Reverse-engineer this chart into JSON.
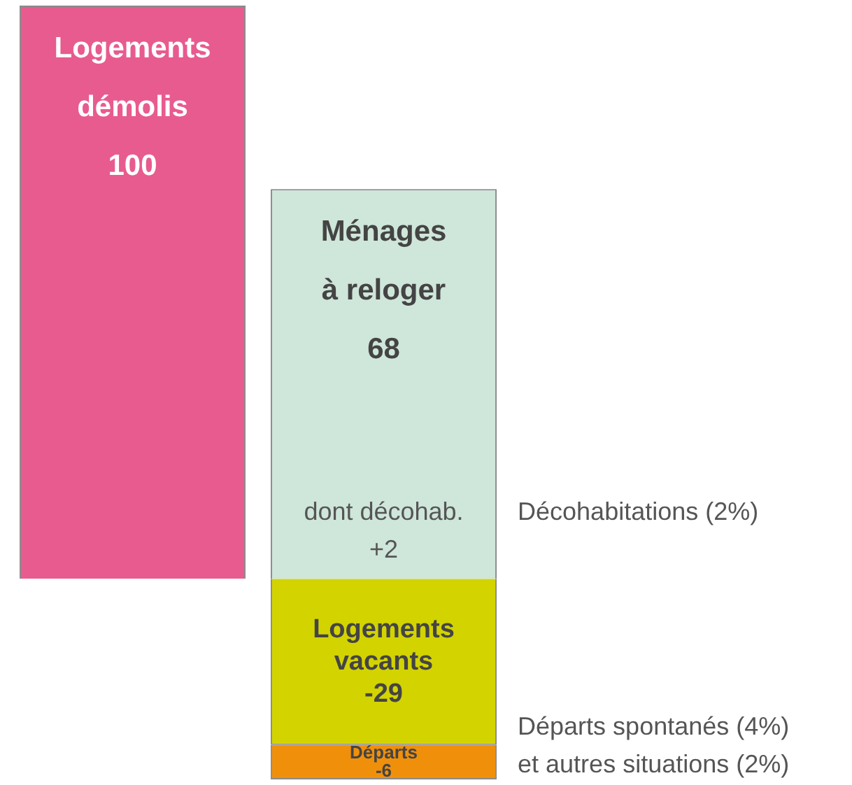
{
  "chart_data": {
    "type": "bar",
    "stacked": true,
    "categories": [
      null,
      null
    ],
    "data_labels": true,
    "series": [
      {
        "name": "Logements\ndémolis",
        "color": "#e85b8f",
        "values": [
          100,
          null
        ]
      },
      {
        "name": "Ménages\nà reloger",
        "color": "#cfe6da",
        "values": [
          null,
          68
        ]
      },
      {
        "name": "Logements\nvacants",
        "color": "#d3d300",
        "values": [
          null,
          -29
        ]
      },
      {
        "name": "Départs",
        "color": "#f0900a",
        "values": [
          null,
          -6
        ]
      }
    ],
    "annotations": [
      "dont décohab.\n+2",
      "Décohabitations (2%)",
      "Départs spontanés (4%)\net autres situations (2%)"
    ]
  }
}
